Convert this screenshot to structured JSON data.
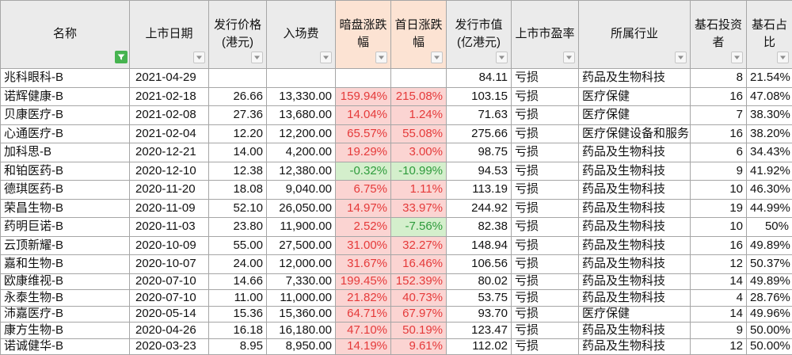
{
  "theme": {
    "header_bg": "#ebebeb",
    "header_highlight_bg": "#fce3d3",
    "grid_line": "#a6a6a6",
    "text": "#111111",
    "positive_bg": "#fbd4d2",
    "positive_text": "#e53a3a",
    "negative_bg": "#d4efcc",
    "negative_text": "#2e9b3c",
    "filter_active": "#46b34f",
    "dropdown_bg": "#f7f7f7",
    "dropdown_border": "#c6c6c6",
    "dropdown_arrow": "#8e8e8e"
  },
  "table": {
    "columns": [
      {
        "label": "名称",
        "filter_icon": "filter-icon",
        "filter_active": true
      },
      {
        "label": "上市日期",
        "filter_icon": "chevron-down-icon"
      },
      {
        "label": "发行价格\n(港元)",
        "filter_icon": "chevron-down-icon"
      },
      {
        "label": "入场费",
        "filter_icon": "chevron-down-icon"
      },
      {
        "label": "暗盘涨跌\n幅",
        "filter_icon": "chevron-down-icon",
        "highlighted": true
      },
      {
        "label": "首日涨跌\n幅",
        "filter_icon": "chevron-down-icon",
        "highlighted": true
      },
      {
        "label": "发行市值\n(亿港元)",
        "filter_icon": "chevron-down-icon"
      },
      {
        "label": "上市市盈率",
        "filter_icon": "chevron-down-icon"
      },
      {
        "label": "所属行业",
        "filter_icon": "chevron-down-icon"
      },
      {
        "label": "基石投资\n者",
        "filter_icon": "chevron-down-icon"
      },
      {
        "label": "基石占\n比",
        "filter_icon": "chevron-down-icon"
      }
    ],
    "rows": [
      {
        "name": "兆科眼科-B",
        "listing_date": "2021-04-29",
        "issue_price": "",
        "entry_fee": "",
        "grey_market_change": "",
        "first_day_change": "",
        "market_cap": "84.11",
        "listing_pe": "亏损",
        "industry": "药品及生物科技",
        "cornerstone_investors": "8",
        "cornerstone_ratio": "21.54%"
      },
      {
        "name": "诺辉健康-B",
        "listing_date": "2021-02-18",
        "issue_price": "26.66",
        "entry_fee": "13,330.00",
        "grey_market_change": "159.94%",
        "first_day_change": "215.08%",
        "market_cap": "103.15",
        "listing_pe": "亏损",
        "industry": "医疗保健",
        "cornerstone_investors": "16",
        "cornerstone_ratio": "47.08%"
      },
      {
        "name": "贝康医疗-B",
        "listing_date": "2021-02-08",
        "issue_price": "27.36",
        "entry_fee": "13,680.00",
        "grey_market_change": "14.04%",
        "first_day_change": "1.24%",
        "market_cap": "71.63",
        "listing_pe": "亏损",
        "industry": "医疗保健",
        "cornerstone_investors": "7",
        "cornerstone_ratio": "38.30%"
      },
      {
        "name": "心通医疗-B",
        "listing_date": "2021-02-04",
        "issue_price": "12.20",
        "entry_fee": "12,200.00",
        "grey_market_change": "65.57%",
        "first_day_change": "55.08%",
        "market_cap": "275.66",
        "listing_pe": "亏损",
        "industry": "医疗保健设备和服务",
        "cornerstone_investors": "16",
        "cornerstone_ratio": "38.20%"
      },
      {
        "name": "加科思-B",
        "listing_date": "2020-12-21",
        "issue_price": "14.00",
        "entry_fee": "4,200.00",
        "grey_market_change": "19.29%",
        "first_day_change": "3.00%",
        "market_cap": "98.75",
        "listing_pe": "亏损",
        "industry": "药品及生物科技",
        "cornerstone_investors": "6",
        "cornerstone_ratio": "34.43%"
      },
      {
        "name": "和铂医药-B",
        "listing_date": "2020-12-10",
        "issue_price": "12.38",
        "entry_fee": "12,380.00",
        "grey_market_change": "-0.32%",
        "first_day_change": "-10.99%",
        "market_cap": "94.53",
        "listing_pe": "亏损",
        "industry": "药品及生物科技",
        "cornerstone_investors": "9",
        "cornerstone_ratio": "41.92%"
      },
      {
        "name": "德琪医药-B",
        "listing_date": "2020-11-20",
        "issue_price": "18.08",
        "entry_fee": "9,040.00",
        "grey_market_change": "6.75%",
        "first_day_change": "1.11%",
        "market_cap": "113.19",
        "listing_pe": "亏损",
        "industry": "药品及生物科技",
        "cornerstone_investors": "10",
        "cornerstone_ratio": "46.30%"
      },
      {
        "name": "荣昌生物-B",
        "listing_date": "2020-11-09",
        "issue_price": "52.10",
        "entry_fee": "26,050.00",
        "grey_market_change": "14.97%",
        "first_day_change": "33.97%",
        "market_cap": "244.92",
        "listing_pe": "亏损",
        "industry": "药品及生物科技",
        "cornerstone_investors": "19",
        "cornerstone_ratio": "44.99%"
      },
      {
        "name": "药明巨诺-B",
        "listing_date": "2020-11-03",
        "issue_price": "23.80",
        "entry_fee": "11,900.00",
        "grey_market_change": "2.52%",
        "first_day_change": "-7.56%",
        "market_cap": "82.38",
        "listing_pe": "亏损",
        "industry": "药品及生物科技",
        "cornerstone_investors": "10",
        "cornerstone_ratio": "50%"
      },
      {
        "name": "云顶新耀-B",
        "listing_date": "2020-10-09",
        "issue_price": "55.00",
        "entry_fee": "27,500.00",
        "grey_market_change": "31.00%",
        "first_day_change": "32.27%",
        "market_cap": "148.94",
        "listing_pe": "亏损",
        "industry": "药品及生物科技",
        "cornerstone_investors": "16",
        "cornerstone_ratio": "49.89%"
      },
      {
        "name": "嘉和生物-B",
        "listing_date": "2020-10-07",
        "issue_price": "24.00",
        "entry_fee": "12,000.00",
        "grey_market_change": "31.67%",
        "first_day_change": "16.46%",
        "market_cap": "106.56",
        "listing_pe": "亏损",
        "industry": "药品及生物科技",
        "cornerstone_investors": "12",
        "cornerstone_ratio": "50.37%"
      },
      {
        "name": "欧康维视-B",
        "listing_date": "2020-07-10",
        "issue_price": "14.66",
        "entry_fee": "7,330.00",
        "grey_market_change": "199.45%",
        "first_day_change": "152.39%",
        "market_cap": "80.02",
        "listing_pe": "亏损",
        "industry": "药品及生物科技",
        "cornerstone_investors": "14",
        "cornerstone_ratio": "49.89%"
      },
      {
        "name": "永泰生物-B",
        "listing_date": "2020-07-10",
        "issue_price": "11.00",
        "entry_fee": "11,000.00",
        "grey_market_change": "21.82%",
        "first_day_change": "40.73%",
        "market_cap": "53.75",
        "listing_pe": "亏损",
        "industry": "药品及生物科技",
        "cornerstone_investors": "4",
        "cornerstone_ratio": "28.76%"
      },
      {
        "name": "沛嘉医疗-B",
        "listing_date": "2020-05-14",
        "issue_price": "15.36",
        "entry_fee": "15,360.00",
        "grey_market_change": "64.71%",
        "first_day_change": "67.97%",
        "market_cap": "93.70",
        "listing_pe": "亏损",
        "industry": "医疗保健",
        "cornerstone_investors": "14",
        "cornerstone_ratio": "49.96%"
      },
      {
        "name": "康方生物-B",
        "listing_date": "2020-04-26",
        "issue_price": "16.18",
        "entry_fee": "16,180.00",
        "grey_market_change": "47.10%",
        "first_day_change": "50.19%",
        "market_cap": "123.47",
        "listing_pe": "亏损",
        "industry": "药品及生物科技",
        "cornerstone_investors": "9",
        "cornerstone_ratio": "50.00%"
      },
      {
        "name": "诺诚健华-B",
        "listing_date": "2020-03-23",
        "issue_price": "8.95",
        "entry_fee": "8,950.00",
        "grey_market_change": "14.19%",
        "first_day_change": "9.61%",
        "market_cap": "112.02",
        "listing_pe": "亏损",
        "industry": "药品及生物科技",
        "cornerstone_investors": "12",
        "cornerstone_ratio": "50.00%"
      }
    ]
  }
}
